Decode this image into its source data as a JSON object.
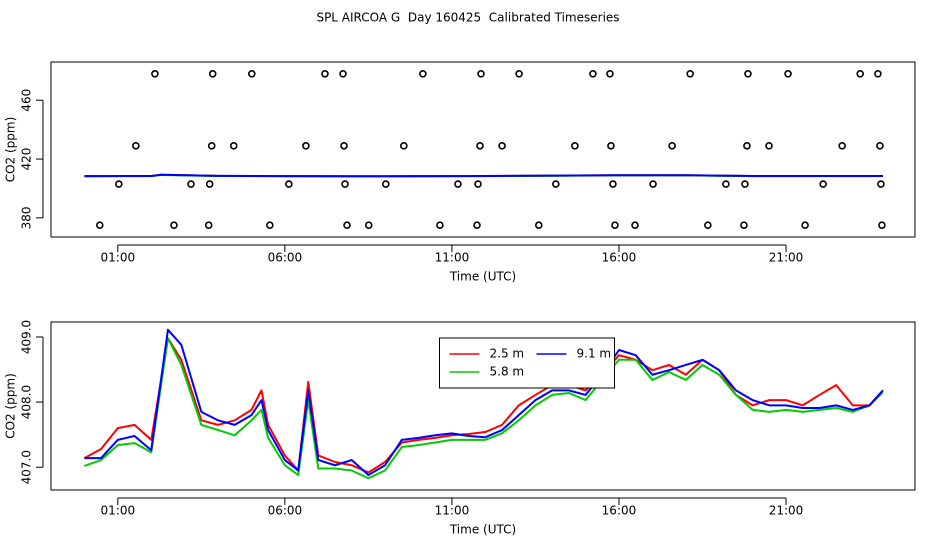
{
  "title": "SPL AIRCOA G  Day 160425  Calibrated Timeseries",
  "chart_data": [
    {
      "type": "line",
      "xlabel": "Time (UTC)",
      "ylabel": "CO2 (ppm)",
      "xlim": [
        -1.0,
        24.86
      ],
      "ylim": [
        367,
        486
      ],
      "xticks": [
        {
          "value": 1,
          "label": "01:00"
        },
        {
          "value": 6,
          "label": "06:00"
        },
        {
          "value": 11,
          "label": "11:00"
        },
        {
          "value": 16,
          "label": "16:00"
        },
        {
          "value": 21,
          "label": "21:00"
        }
      ],
      "yticks": [
        380,
        420,
        460
      ],
      "series": [
        {
          "color": "#000000",
          "style": "points",
          "x": [
            2.11,
            3.84,
            5.01,
            7.2,
            7.74,
            10.13,
            11.87,
            13.01,
            15.22,
            15.73,
            18.13,
            19.86,
            21.06,
            23.22,
            23.75,
            1.54,
            3.81,
            4.47,
            6.63,
            7.77,
            9.56,
            11.84,
            12.5,
            14.68,
            15.76,
            17.59,
            19.83,
            20.49,
            22.68,
            23.81,
            1.03,
            3.19,
            3.75,
            6.12,
            7.8,
            9.02,
            11.18,
            11.78,
            14.11,
            15.82,
            17.02,
            19.2,
            19.77,
            22.11,
            23.84,
            0.46,
            2.68,
            3.72,
            5.55,
            7.86,
            8.51,
            10.64,
            11.75,
            13.6,
            15.88,
            16.48,
            18.66,
            19.74,
            21.57,
            23.87
          ],
          "values": [
            478,
            478,
            478,
            478,
            478,
            478,
            478,
            478,
            478,
            478,
            478,
            478,
            478,
            478,
            478,
            429,
            429,
            429,
            429,
            429,
            429,
            429,
            429,
            429,
            429,
            429,
            429,
            429,
            429,
            429,
            403,
            403,
            403,
            403,
            403,
            403,
            403,
            403,
            403,
            403,
            403,
            403,
            403,
            403,
            403,
            375,
            375,
            375,
            375,
            375,
            375,
            375,
            375,
            375,
            375,
            375,
            375,
            375,
            375,
            375
          ]
        },
        {
          "color": "#ff0000",
          "style": "lines",
          "x": [
            0,
            2,
            2.3,
            4,
            8,
            12,
            16,
            18,
            20,
            23.9
          ],
          "values": [
            408.4,
            408.5,
            409.3,
            408.6,
            408.3,
            408.5,
            409.0,
            409.0,
            408.5,
            408.5
          ]
        },
        {
          "color": "#00cc00",
          "style": "lines",
          "x": [
            0,
            2,
            2.3,
            4,
            8,
            12,
            16,
            18,
            20,
            23.9
          ],
          "values": [
            408.3,
            408.4,
            409.2,
            408.5,
            408.2,
            408.4,
            408.9,
            408.9,
            408.4,
            408.4
          ]
        },
        {
          "color": "#0000ff",
          "style": "lines",
          "x": [
            0,
            2,
            2.3,
            4,
            8,
            12,
            16,
            18,
            20,
            23.9
          ],
          "values": [
            408.4,
            408.5,
            409.3,
            408.6,
            408.3,
            408.5,
            409.0,
            409.0,
            408.5,
            408.5
          ]
        }
      ]
    },
    {
      "type": "line",
      "xlabel": "Time (UTC)",
      "ylabel": "CO2 (ppm)",
      "xlim": [
        -1.0,
        24.86
      ],
      "ylim": [
        406.65,
        409.23
      ],
      "xticks": [
        {
          "value": 1,
          "label": "01:00"
        },
        {
          "value": 6,
          "label": "06:00"
        },
        {
          "value": 11,
          "label": "11:00"
        },
        {
          "value": 16,
          "label": "16:00"
        },
        {
          "value": 21,
          "label": "21:00"
        }
      ],
      "yticks": [
        {
          "value": 407,
          "label": "407.0"
        },
        {
          "value": 408,
          "label": "408.0"
        },
        {
          "value": 409,
          "label": "409.0"
        }
      ],
      "legend": "top-center",
      "x": [
        0,
        0.5,
        1,
        1.5,
        2,
        2.5,
        2.9,
        3.5,
        4,
        4.5,
        5,
        5.3,
        5.5,
        6,
        6.4,
        6.7,
        7,
        7.5,
        8,
        8.5,
        9,
        9.5,
        10,
        10.5,
        11,
        11.5,
        12,
        12.5,
        13,
        13.5,
        14,
        14.5,
        15,
        15.5,
        16,
        16.5,
        17,
        17.5,
        18,
        18.5,
        19,
        19.5,
        20,
        20.5,
        21,
        21.5,
        22,
        22.5,
        23,
        23.5,
        23.9
      ],
      "series": [
        {
          "name": "2.5 m",
          "color": "#ff0000",
          "style": "lines",
          "values": [
            407.14,
            407.28,
            407.6,
            407.65,
            407.42,
            408.98,
            408.65,
            407.72,
            407.65,
            407.72,
            407.88,
            408.18,
            407.65,
            407.18,
            406.95,
            408.31,
            407.18,
            407.08,
            407.03,
            406.92,
            407.08,
            407.38,
            407.42,
            407.45,
            407.49,
            407.51,
            407.54,
            407.65,
            407.95,
            408.11,
            408.26,
            408.26,
            408.18,
            408.42,
            408.72,
            408.65,
            408.49,
            408.57,
            408.42,
            408.65,
            408.49,
            408.11,
            407.95,
            408.03,
            408.03,
            407.95,
            408.11,
            408.26,
            407.95,
            407.95,
            408.18
          ]
        },
        {
          "name": "5.8 m",
          "color": "#00cc00",
          "style": "lines",
          "values": [
            407.02,
            407.11,
            407.34,
            407.37,
            407.23,
            408.98,
            408.57,
            407.65,
            407.57,
            407.49,
            407.72,
            407.88,
            407.45,
            407.03,
            406.88,
            408.03,
            406.98,
            406.98,
            406.95,
            406.83,
            406.95,
            407.31,
            407.34,
            407.38,
            407.42,
            407.42,
            407.42,
            407.52,
            407.72,
            407.95,
            408.11,
            408.14,
            408.03,
            408.34,
            408.65,
            408.65,
            408.34,
            408.46,
            408.34,
            408.57,
            408.42,
            408.11,
            407.88,
            407.85,
            407.88,
            407.85,
            407.88,
            407.91,
            407.85,
            407.95,
            408.15
          ]
        },
        {
          "name": "9.1 m",
          "color": "#0000ff",
          "style": "lines",
          "values": [
            407.14,
            407.14,
            407.42,
            407.48,
            407.26,
            409.11,
            408.88,
            407.85,
            407.72,
            407.65,
            407.8,
            408.03,
            407.57,
            407.11,
            406.95,
            408.18,
            407.11,
            407.03,
            407.11,
            406.88,
            407.03,
            407.42,
            407.45,
            407.49,
            407.52,
            407.48,
            407.46,
            407.57,
            407.8,
            408.03,
            408.18,
            408.18,
            408.11,
            408.42,
            408.8,
            408.72,
            408.42,
            408.49,
            408.57,
            408.65,
            408.49,
            408.18,
            408.03,
            407.95,
            407.95,
            407.91,
            407.91,
            407.95,
            407.88,
            407.95,
            408.18
          ]
        }
      ]
    }
  ]
}
